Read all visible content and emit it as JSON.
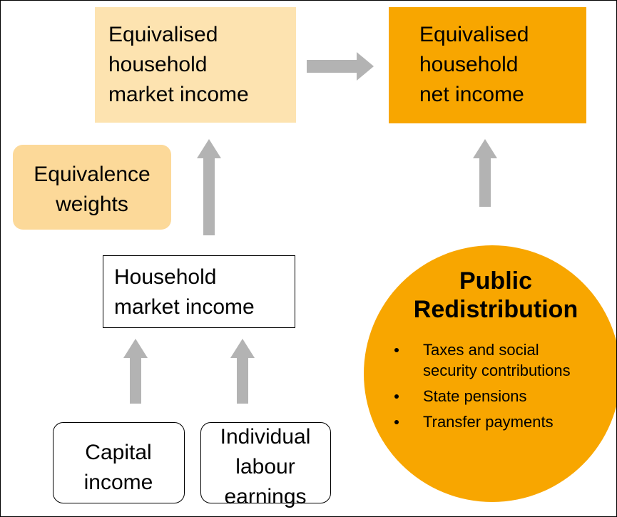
{
  "nodes": [
    {
      "lines": [
        "Equivalised",
        "household",
        "market income"
      ]
    },
    {
      "lines": [
        "Equivalised",
        "household",
        "net income"
      ]
    },
    {
      "lines": [
        "Equivalence",
        "weights"
      ]
    },
    {
      "lines": [
        "Household",
        "market income"
      ]
    },
    {
      "lines": [
        "Capital",
        "income"
      ]
    },
    {
      "lines": [
        "Individual",
        "labour",
        "earnings"
      ]
    }
  ],
  "redistribution": {
    "title": [
      "Public",
      "Redistribution"
    ],
    "items": [
      [
        "Taxes and social",
        "security contributions"
      ],
      [
        "State pensions"
      ],
      [
        "Transfer payments"
      ]
    ]
  }
}
